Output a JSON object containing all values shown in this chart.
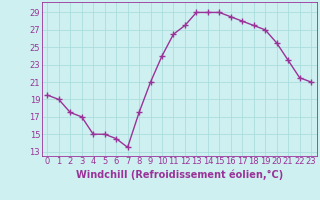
{
  "x": [
    0,
    1,
    2,
    3,
    4,
    5,
    6,
    7,
    8,
    9,
    10,
    11,
    12,
    13,
    14,
    15,
    16,
    17,
    18,
    19,
    20,
    21,
    22,
    23
  ],
  "y": [
    19.5,
    19.0,
    17.5,
    17.0,
    15.0,
    15.0,
    14.5,
    13.5,
    17.5,
    21.0,
    24.0,
    26.5,
    27.5,
    29.0,
    29.0,
    29.0,
    28.5,
    28.0,
    27.5,
    27.0,
    25.5,
    23.5,
    21.5,
    21.0
  ],
  "line_color": "#993399",
  "marker": "+",
  "marker_size": 4,
  "marker_lw": 1.0,
  "xlabel": "Windchill (Refroidissement éolien,°C)",
  "xlabel_fontsize": 7,
  "ylabel_ticks": [
    13,
    15,
    17,
    19,
    21,
    23,
    25,
    27,
    29
  ],
  "xticks": [
    0,
    1,
    2,
    3,
    4,
    5,
    6,
    7,
    8,
    9,
    10,
    11,
    12,
    13,
    14,
    15,
    16,
    17,
    18,
    19,
    20,
    21,
    22,
    23
  ],
  "ylim": [
    12.5,
    30.2
  ],
  "xlim": [
    -0.5,
    23.5
  ],
  "bg_color": "#cff0f0",
  "grid_color": "#aadddd",
  "tick_fontsize": 6,
  "line_width": 1.0
}
